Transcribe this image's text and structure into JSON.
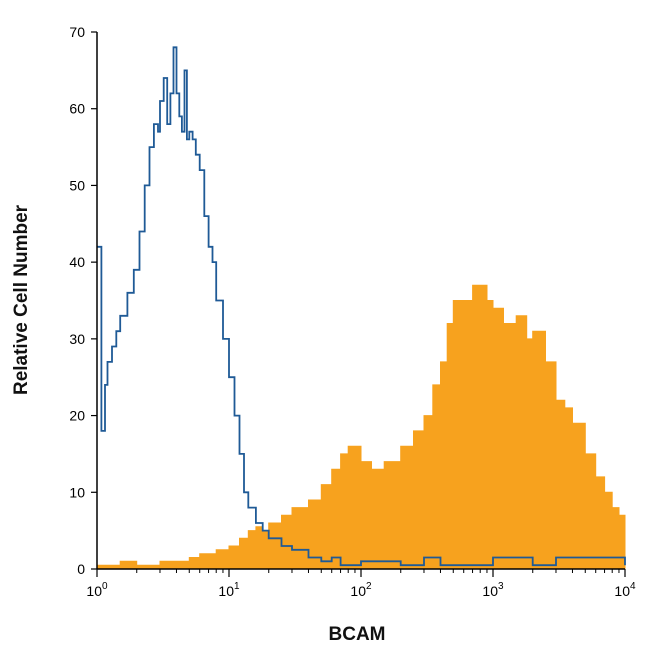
{
  "chart_data": {
    "type": "area",
    "title": "",
    "xlabel": "BCAM",
    "ylabel": "Relative Cell Number",
    "x_scale": "log",
    "xlim": [
      1,
      10000
    ],
    "ylim": [
      0,
      70
    ],
    "grid": false,
    "x_ticks": [
      {
        "base": "10",
        "exp": "0"
      },
      {
        "base": "10",
        "exp": "1"
      },
      {
        "base": "10",
        "exp": "2"
      },
      {
        "base": "10",
        "exp": "3"
      },
      {
        "base": "10",
        "exp": "4"
      }
    ],
    "y_ticks": [
      "0",
      "10",
      "20",
      "30",
      "40",
      "50",
      "60",
      "70"
    ],
    "colors": {
      "isotype": "#1f5a96",
      "stained": "#f7a21e",
      "axis": "#000000"
    },
    "series": [
      {
        "style": "outline",
        "x": [
          1,
          1.08,
          1.15,
          1.2,
          1.3,
          1.4,
          1.5,
          1.7,
          1.9,
          2.1,
          2.3,
          2.5,
          2.7,
          2.9,
          3.0,
          3.2,
          3.4,
          3.6,
          3.8,
          4.0,
          4.2,
          4.4,
          4.6,
          4.8,
          5.0,
          5.3,
          5.6,
          6.0,
          6.5,
          7.0,
          7.5,
          8.0,
          9.0,
          10,
          11,
          12,
          13,
          14,
          16,
          18,
          20,
          25,
          30,
          40,
          50,
          60,
          70,
          100,
          200,
          300,
          400,
          800,
          1000,
          2000,
          3000,
          10000
        ],
        "values": [
          42,
          18,
          24,
          27,
          29,
          31,
          33,
          36,
          39,
          44,
          50,
          55,
          58,
          57,
          61,
          64,
          58,
          62,
          68,
          62,
          59,
          57,
          65,
          56,
          57,
          56,
          54,
          52,
          46,
          42,
          40,
          35,
          30,
          25,
          20,
          15,
          10,
          8,
          6,
          5,
          4,
          3,
          2.5,
          1.5,
          1,
          1.5,
          0.5,
          1,
          0.5,
          1.5,
          0.5,
          0.5,
          1.5,
          0.5,
          1.5,
          0.5
        ]
      },
      {
        "style": "filled",
        "x": [
          1,
          1.5,
          2,
          3,
          4,
          5,
          6,
          7,
          8,
          10,
          12,
          14,
          16,
          18,
          20,
          25,
          30,
          40,
          50,
          60,
          70,
          80,
          100,
          120,
          150,
          200,
          250,
          300,
          350,
          400,
          450,
          500,
          600,
          700,
          800,
          900,
          1000,
          1200,
          1500,
          1800,
          2000,
          2500,
          3000,
          3500,
          4000,
          5000,
          6000,
          7000,
          8000,
          9000,
          10000
        ],
        "values": [
          0.5,
          1,
          0.5,
          1,
          1,
          1.5,
          2,
          2,
          2.5,
          3,
          4,
          5,
          5.5,
          5,
          6,
          7,
          8,
          9,
          11,
          13,
          15,
          16,
          14,
          13,
          14,
          16,
          18,
          20,
          24,
          27,
          32,
          35,
          35,
          37,
          37,
          35,
          34,
          32,
          33,
          30,
          31,
          27,
          22,
          21,
          19,
          15,
          12,
          10,
          8,
          7,
          5
        ]
      }
    ]
  }
}
